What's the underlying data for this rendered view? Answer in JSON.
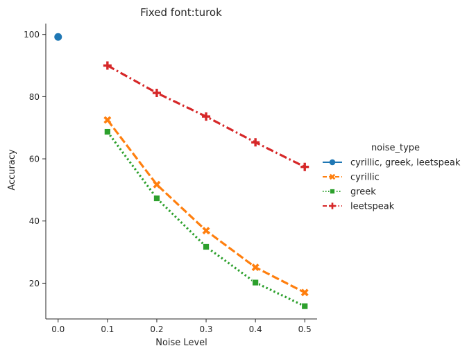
{
  "chart_data": {
    "type": "line",
    "title": "Fixed font:turok",
    "xlabel": "Noise Level",
    "ylabel": "Accuracy",
    "xlim": [
      -0.025,
      0.525
    ],
    "ylim": [
      8.5,
      103.5
    ],
    "xticks": [
      "0.0",
      "0.1",
      "0.2",
      "0.3",
      "0.4",
      "0.5"
    ],
    "xtick_values": [
      0.0,
      0.1,
      0.2,
      0.3,
      0.4,
      0.5
    ],
    "yticks": [
      "20",
      "40",
      "60",
      "80",
      "100"
    ],
    "ytick_values": [
      20,
      40,
      60,
      80,
      100
    ],
    "grid": false,
    "legend_title": "noise_type",
    "legend_position": "right",
    "series": [
      {
        "name": "cyrillic, greek, leetspeak",
        "color": "#1f77b4",
        "marker": "circle",
        "dash": "solid",
        "x": [
          0.0
        ],
        "y": [
          99.2
        ]
      },
      {
        "name": "cyrillic",
        "color": "#ff7f0e",
        "marker": "x",
        "dash": "dashed",
        "x": [
          0.1,
          0.2,
          0.3,
          0.4,
          0.5
        ],
        "y": [
          72.5,
          51.7,
          36.9,
          25.1,
          17.0
        ]
      },
      {
        "name": "greek",
        "color": "#2ca02c",
        "marker": "square",
        "dash": "dotted",
        "x": [
          0.1,
          0.2,
          0.3,
          0.4,
          0.5
        ],
        "y": [
          68.7,
          47.3,
          31.7,
          20.2,
          12.6
        ]
      },
      {
        "name": "leetspeak",
        "color": "#d62728",
        "marker": "plus",
        "dash": "dashdot",
        "x": [
          0.1,
          0.2,
          0.3,
          0.4,
          0.5
        ],
        "y": [
          90.0,
          81.2,
          73.6,
          65.3,
          57.4
        ]
      }
    ]
  }
}
